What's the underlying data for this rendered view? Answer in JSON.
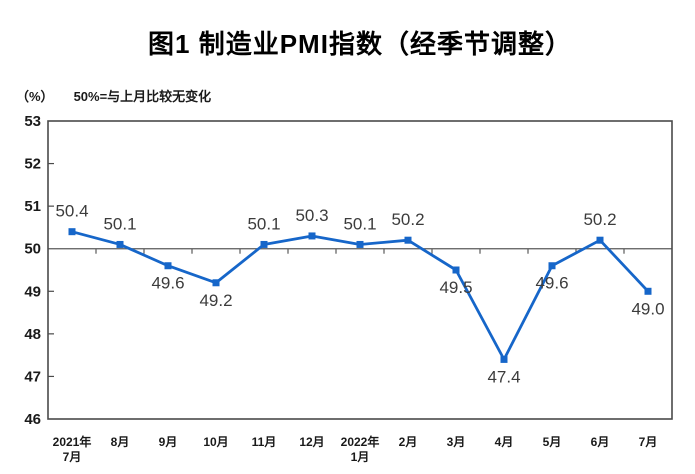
{
  "title": "图1 制造业PMI指数（经季节调整）",
  "unit_label": "（%）",
  "note": "50%=与上月比较无变化",
  "colors": {
    "line": "#1666c9",
    "marker": "#1666c9",
    "axis_border": "#4a4a4a",
    "reference_line": "#5a5a5a",
    "data_label": "#3c3c3c",
    "axis_text": "#1a1a1a"
  },
  "chart_data": {
    "type": "line",
    "title": "图1 制造业PMI指数（经季节调整）",
    "ylabel": "（%）",
    "annotation": "50%=与上月比较无变化",
    "categories": [
      "2021年\n7月",
      "8月",
      "9月",
      "10月",
      "11月",
      "12月",
      "2022年\n1月",
      "2月",
      "3月",
      "4月",
      "5月",
      "6月",
      "7月"
    ],
    "series": [
      {
        "name": "制造业PMI指数",
        "values": [
          50.4,
          50.1,
          49.6,
          49.2,
          50.1,
          50.3,
          50.1,
          50.2,
          49.5,
          47.4,
          49.6,
          50.2,
          49.0
        ]
      }
    ],
    "ylim": [
      46,
      53
    ],
    "ytick_step": 1,
    "yticks": [
      46,
      47,
      48,
      49,
      50,
      51,
      52,
      53
    ],
    "reference_line": 50,
    "grid": false,
    "legend_position": "none",
    "data_labels": true
  }
}
